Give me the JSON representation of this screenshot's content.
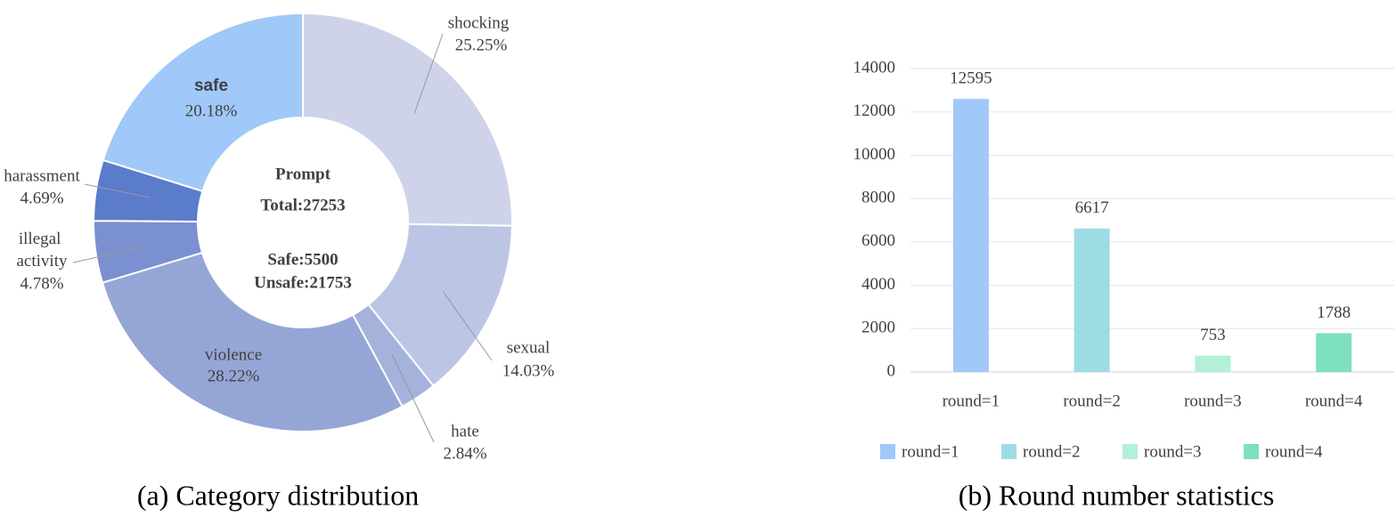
{
  "chart_data": [
    {
      "type": "pie",
      "caption": "(a) Category distribution",
      "center_texts": [
        "Prompt",
        "Total:27253",
        "Safe:5500",
        "Unsafe:21753"
      ],
      "categories": [
        "shocking",
        "sexual",
        "hate",
        "violence",
        "illegal activity",
        "harassment",
        "safe"
      ],
      "values": [
        25.25,
        14.03,
        2.84,
        28.22,
        4.78,
        4.69,
        20.18
      ],
      "value_labels": [
        "25.25%",
        "14.03%",
        "2.84%",
        "28.22%",
        "4.78%",
        "4.69%",
        "20.18%"
      ],
      "colors": [
        "#cfd3ea",
        "#bcc5e4",
        "#a5b2dc",
        "#95a6d6",
        "#7b90d0",
        "#5b7bcb",
        "#a0c8f8"
      ]
    },
    {
      "type": "bar",
      "caption": "(b) Round number statistics",
      "categories": [
        "round=1",
        "round=2",
        "round=3",
        "round=4"
      ],
      "values": [
        12595,
        6617,
        753,
        1788
      ],
      "colors": [
        "#a0c8f8",
        "#9edce4",
        "#b3f0d8",
        "#7de0c0"
      ],
      "ylim": [
        0,
        14000
      ],
      "yticks": [
        0,
        2000,
        4000,
        6000,
        8000,
        10000,
        12000,
        14000
      ],
      "grid": true,
      "legend": "bottom"
    }
  ]
}
